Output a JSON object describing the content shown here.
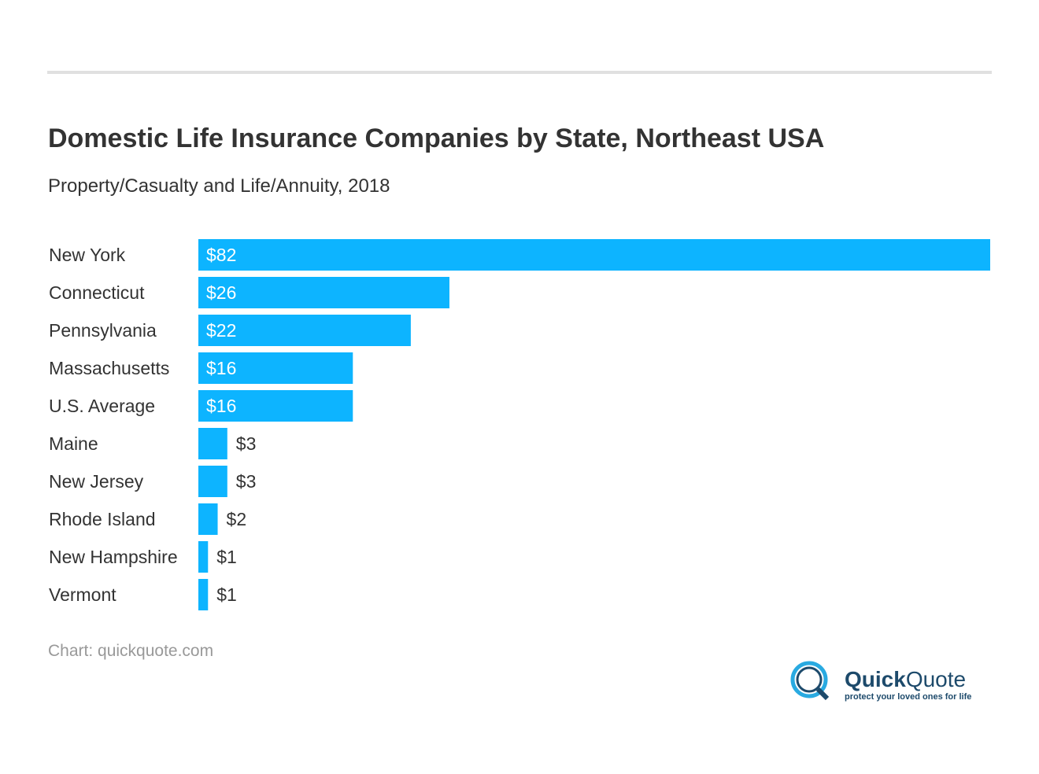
{
  "chart_data": {
    "type": "bar",
    "orientation": "horizontal",
    "title": "Domestic Life Insurance Companies by State, Northeast USA",
    "subtitle": "Property/Casualty and Life/Annuity, 2018",
    "categories": [
      "New York",
      "Connecticut",
      "Pennsylvania",
      "Massachusetts",
      "U.S. Average",
      "Maine",
      "New Jersey",
      "Rhode Island",
      "New Hampshire",
      "Vermont"
    ],
    "values": [
      82,
      26,
      22,
      16,
      16,
      3,
      3,
      2,
      1,
      1
    ],
    "data_labels": [
      "$82",
      "$26",
      "$22",
      "$16",
      "$16",
      "$3",
      "$3",
      "$2",
      "$1",
      "$1"
    ],
    "xlim": [
      0,
      82
    ],
    "grid": false,
    "bar_color": "#0db4ff",
    "source": "Chart: quickquote.com"
  },
  "logo": {
    "name_bold": "Quick",
    "name_light": "Quote",
    "tagline": "protect your loved ones for life"
  }
}
